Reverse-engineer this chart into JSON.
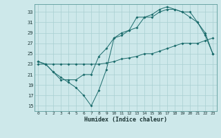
{
  "xlabel": "Humidex (Indice chaleur)",
  "ylabel": "",
  "bg_color": "#cde8ea",
  "grid_color": "#a8cfd1",
  "line_color": "#1a6b6b",
  "xlim": [
    -0.5,
    23.5
  ],
  "ylim": [
    14,
    34.5
  ],
  "yticks": [
    15,
    17,
    19,
    21,
    23,
    25,
    27,
    29,
    31,
    33
  ],
  "xticks": [
    0,
    1,
    2,
    3,
    4,
    5,
    6,
    7,
    8,
    9,
    10,
    11,
    12,
    13,
    14,
    15,
    16,
    17,
    18,
    19,
    20,
    21,
    22,
    23
  ],
  "line1_x": [
    0,
    1,
    2,
    3,
    4,
    5,
    6,
    7,
    8,
    9,
    10,
    11,
    12,
    13,
    14,
    15,
    16,
    17,
    18,
    19,
    20,
    21,
    22,
    23
  ],
  "line1_y": [
    23.5,
    23,
    21.5,
    20.5,
    19.5,
    18.5,
    17,
    15,
    18,
    22,
    28,
    28.5,
    29.5,
    32,
    32,
    32.5,
    33.5,
    34,
    33.5,
    33,
    32,
    31,
    28.5,
    25
  ],
  "line2_x": [
    0,
    1,
    2,
    3,
    4,
    5,
    6,
    7,
    8,
    9,
    10,
    11,
    12,
    13,
    14,
    15,
    16,
    17,
    18,
    19,
    20,
    21,
    22,
    23
  ],
  "line2_y": [
    23.5,
    23,
    21.5,
    20,
    20,
    20,
    21,
    21,
    24.5,
    26,
    28,
    29,
    29.5,
    30,
    32,
    32,
    33,
    33.5,
    33.5,
    33,
    33,
    31,
    29,
    25
  ],
  "line3_x": [
    0,
    1,
    2,
    3,
    4,
    5,
    6,
    7,
    8,
    9,
    10,
    11,
    12,
    13,
    14,
    15,
    16,
    17,
    18,
    19,
    20,
    21,
    22,
    23
  ],
  "line3_y": [
    23,
    23,
    23,
    23,
    23,
    23,
    23,
    23,
    23,
    23.2,
    23.5,
    24,
    24.2,
    24.5,
    25,
    25,
    25.5,
    26,
    26.5,
    27,
    27,
    27,
    27.5,
    28
  ]
}
